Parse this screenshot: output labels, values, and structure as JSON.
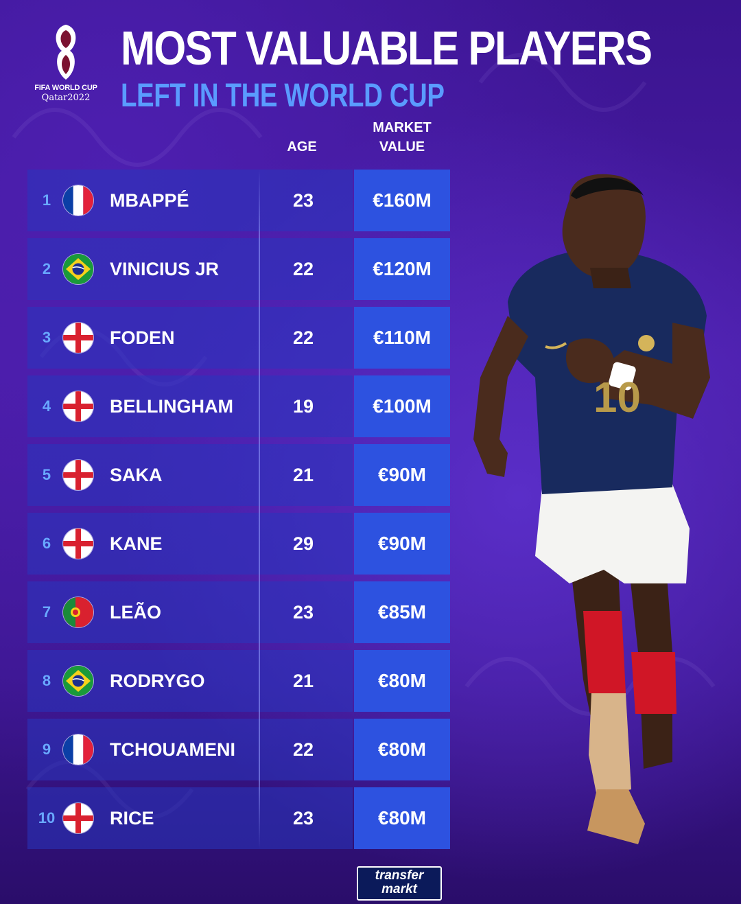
{
  "header": {
    "title": "MOST VALUABLE PLAYERS",
    "subtitle": "LEFT IN THE WORLD CUP",
    "logo_text_1": "FIFA WORLD CUP",
    "logo_text_2": "Qatar2022"
  },
  "columns": {
    "age": "AGE",
    "market_value_1": "MARKET",
    "market_value_2": "VALUE"
  },
  "players": [
    {
      "rank": "1",
      "country": "france",
      "name": "MBAPPÉ",
      "age": "23",
      "value": "€160M"
    },
    {
      "rank": "2",
      "country": "brazil",
      "name": "VINICIUS JR",
      "age": "22",
      "value": "€120M"
    },
    {
      "rank": "3",
      "country": "england",
      "name": "FODEN",
      "age": "22",
      "value": "€110M"
    },
    {
      "rank": "4",
      "country": "england",
      "name": "BELLINGHAM",
      "age": "19",
      "value": "€100M"
    },
    {
      "rank": "5",
      "country": "england",
      "name": "SAKA",
      "age": "21",
      "value": "€90M"
    },
    {
      "rank": "6",
      "country": "england",
      "name": "KANE",
      "age": "29",
      "value": "€90M"
    },
    {
      "rank": "7",
      "country": "portugal",
      "name": "LEÃO",
      "age": "23",
      "value": "€85M"
    },
    {
      "rank": "8",
      "country": "brazil",
      "name": "RODRYGO",
      "age": "21",
      "value": "€80M"
    },
    {
      "rank": "9",
      "country": "france",
      "name": "TCHOUAMENI",
      "age": "22",
      "value": "€80M"
    },
    {
      "rank": "10",
      "country": "england",
      "name": "RICE",
      "age": "23",
      "value": "€80M"
    }
  ],
  "footer": {
    "brand_1": "transfer",
    "brand_2": "markt"
  },
  "colors": {
    "background": "#3a148f",
    "subtitle": "#5a9bff",
    "value_cell": "#2d52e0",
    "rank": "#69a8ff"
  }
}
